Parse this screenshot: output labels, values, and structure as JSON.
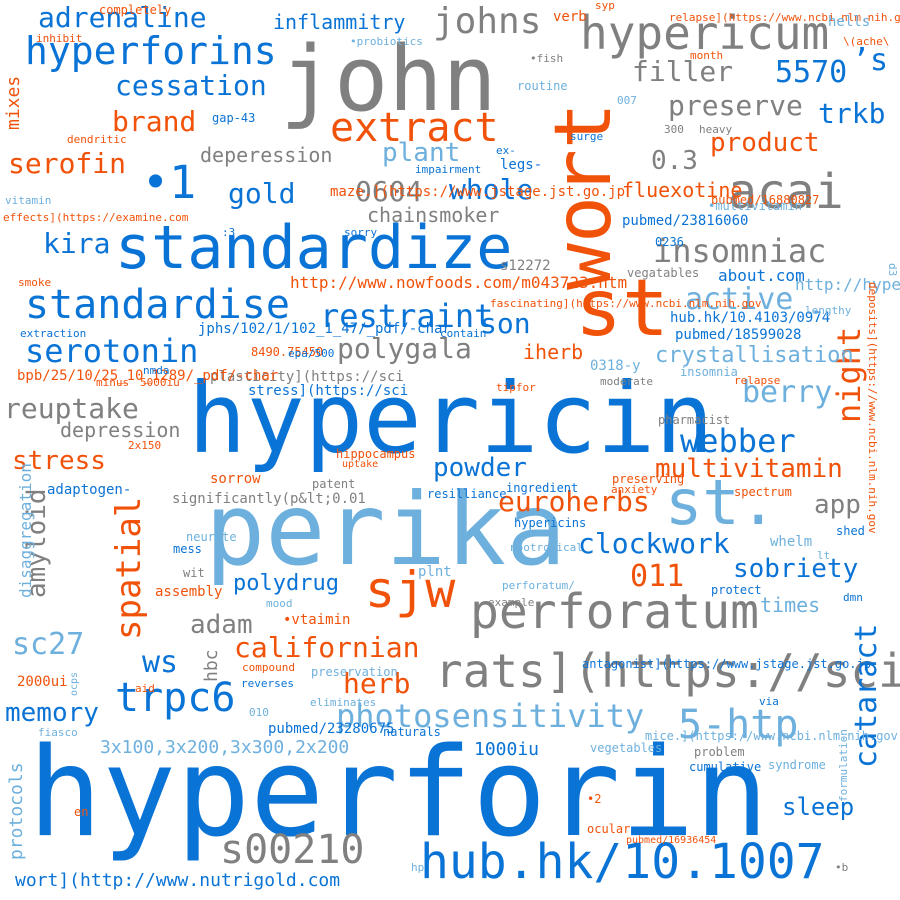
{
  "colors": {
    "blue": "#0a73d6",
    "gray": "#808080",
    "orange": "#f1520a",
    "lightblue": "#6eb0dd",
    "background": "#ffffff"
  },
  "words": [
    {
      "text": "hyperforin",
      "color": "blue"
    },
    {
      "text": "perika",
      "color": "lightblue"
    },
    {
      "text": "hypericin",
      "color": "blue"
    },
    {
      "text": "john",
      "color": "gray"
    },
    {
      "text": "wort",
      "color": "orange"
    },
    {
      "text": "standardize",
      "color": "blue"
    },
    {
      "text": "st",
      "color": "orange"
    },
    {
      "text": "perforatum",
      "color": "gray"
    },
    {
      "text": "hub.hk/10.1007",
      "color": "blue"
    },
    {
      "text": "st.",
      "color": "lightblue"
    },
    {
      "text": "sjw",
      "color": "orange"
    },
    {
      "text": "rats](https://sci",
      "color": "gray"
    },
    {
      "text": "hypericum",
      "color": "gray"
    },
    {
      "text": "hyperforins",
      "color": "blue"
    },
    {
      "text": "extract",
      "color": "orange"
    },
    {
      "text": "acai",
      "color": "gray"
    },
    {
      "text": "standardise",
      "color": "blue"
    },
    {
      "text": "trpc6",
      "color": "blue"
    },
    {
      "text": "s00210",
      "color": "gray"
    },
    {
      "text": "5-htp",
      "color": "lightblue"
    },
    {
      "text": "spatial",
      "color": "orange"
    },
    {
      "text": "johns",
      "color": "gray"
    },
    {
      "text": "insomniac",
      "color": "gray"
    },
    {
      "text": "webber",
      "color": "blue"
    },
    {
      "text": "photosensitivity",
      "color": "lightblue"
    },
    {
      "text": "restraint",
      "color": "blue"
    },
    {
      "text": "serotonin",
      "color": "blue"
    },
    {
      "text": "adrenaline",
      "color": "blue"
    },
    {
      "text": "cessation",
      "color": "blue"
    },
    {
      "text": "brand",
      "color": "orange"
    },
    {
      "text": "serofin",
      "color": "orange"
    },
    {
      "text": "polygala",
      "color": "gray"
    },
    {
      "text": "euroherbs",
      "color": "orange"
    },
    {
      "text": "clockwork",
      "color": "blue"
    },
    {
      "text": "californian",
      "color": "orange"
    },
    {
      "text": "herb",
      "color": "orange"
    },
    {
      "text": "memory",
      "color": "blue"
    },
    {
      "text": "sobriety",
      "color": "blue"
    },
    {
      "text": "berry",
      "color": "lightblue"
    },
    {
      "text": "night",
      "color": "orange"
    },
    {
      "text": "cataract",
      "color": "blue"
    },
    {
      "text": "multivitamin",
      "color": "orange"
    },
    {
      "text": "powder",
      "color": "blue"
    },
    {
      "text": "product",
      "color": "orange"
    },
    {
      "text": "active",
      "color": "lightblue"
    },
    {
      "text": "filler",
      "color": "gray"
    },
    {
      "text": "5570",
      "color": "blue"
    },
    {
      "text": "preserve",
      "color": "gray"
    },
    {
      "text": "trkb",
      "color": "blue"
    },
    {
      "text": "plant",
      "color": "lightblue"
    },
    {
      "text": "0604",
      "color": "gray"
    },
    {
      "text": "whole",
      "color": "blue"
    },
    {
      "text": "gold",
      "color": "blue"
    },
    {
      "text": "kira",
      "color": "blue"
    },
    {
      "text": "son",
      "color": "blue"
    },
    {
      "text": "reuptake",
      "color": "gray"
    },
    {
      "text": "stress",
      "color": "orange"
    },
    {
      "text": "amyloid",
      "color": "gray"
    },
    {
      "text": "011",
      "color": "orange"
    },
    {
      "text": "adam",
      "color": "gray"
    },
    {
      "text": "polydrug",
      "color": "blue"
    },
    {
      "text": "ws",
      "color": "blue"
    },
    {
      "text": "sc27",
      "color": "lightblue"
    },
    {
      "text": "sleep",
      "color": "blue"
    },
    {
      "text": "iherb",
      "color": "orange"
    },
    {
      "text": "app",
      "color": "gray"
    },
    {
      "text": "•1",
      "color": "blue"
    },
    {
      "text": "’s",
      "color": "blue"
    },
    {
      "text": "0.3",
      "color": "gray"
    },
    {
      "text": "fluexotine",
      "color": "orange"
    },
    {
      "text": "deperession",
      "color": "gray"
    },
    {
      "text": "chainsmoker",
      "color": "gray"
    },
    {
      "text": "crystallisation",
      "color": "lightblue"
    },
    {
      "text": "depression",
      "color": "gray"
    },
    {
      "text": "inflammitry",
      "color": "blue"
    },
    {
      "text": "mixes",
      "color": "orange"
    },
    {
      "text": "protocols",
      "color": "lightblue"
    },
    {
      "text": "disaggregation",
      "color": "lightblue"
    },
    {
      "text": "hbc",
      "color": "gray"
    },
    {
      "text": "times",
      "color": "lightblue"
    },
    {
      "text": "1000iu",
      "color": "blue"
    },
    {
      "text": "3x100,3x200,3x300,2x200",
      "color": "lightblue"
    },
    {
      "text": "wort](http://www.nutrigold.com",
      "color": "blue"
    },
    {
      "text": "http://www.nowfoods.com/m043723.htm",
      "color": "orange"
    },
    {
      "text": "http://hypericum.com/hypericum-perforatum/",
      "color": "lightblue"
    },
    {
      "text": "about.com",
      "color": "blue"
    },
    {
      "text": "whelm",
      "color": "lightblue"
    },
    {
      "text": "adaptogen-",
      "color": "blue"
    },
    {
      "text": "sorrow",
      "color": "orange"
    },
    {
      "text": "•vtaimin",
      "color": "orange"
    },
    {
      "text": "assembly",
      "color": "orange"
    },
    {
      "text": "plnt",
      "color": "lightblue"
    },
    {
      "text": "significantly(p&lt;0.01",
      "color": "gray"
    },
    {
      "text": "plasticity](https://sci",
      "color": "gray"
    },
    {
      "text": "stress](https://sci",
      "color": "blue"
    },
    {
      "text": "jphs/102/1/102_1_47/_pdf/-char",
      "color": "blue"
    },
    {
      "text": "hub.hk/10.4103/0974",
      "color": "blue"
    },
    {
      "text": "pubmed/18599028",
      "color": "blue"
    },
    {
      "text": "pubmed/23280675",
      "color": "blue"
    },
    {
      "text": "pubmed/16880827",
      "color": "orange"
    },
    {
      "text": "pubmed/16936454",
      "color": "orange"
    },
    {
      "text": "pubmed/23816060",
      "color": "blue"
    },
    {
      "text": "bpb/25/10/25_10_1289/_pdf/-char",
      "color": "orange"
    },
    {
      "text": "2000ui",
      "color": "orange"
    },
    {
      "text": "8490.75450",
      "color": "orange"
    },
    {
      "text": "s12272",
      "color": "gray"
    },
    {
      "text": "legs-",
      "color": "blue"
    },
    {
      "text": "0318-y",
      "color": "lightblue"
    },
    {
      "text": "0236",
      "color": "blue"
    },
    {
      "text": "•multivitamin",
      "color": "lightblue"
    },
    {
      "text": "vegatables",
      "color": "gray"
    },
    {
      "text": "lengthy",
      "color": "lightblue"
    },
    {
      "text": "insomnia",
      "color": "lightblue"
    },
    {
      "text": "relapse",
      "color": "orange"
    },
    {
      "text": "moderate",
      "color": "gray"
    },
    {
      "text": "pharmacist",
      "color": "gray"
    },
    {
      "text": "spectrum",
      "color": "orange"
    },
    {
      "text": "ingredient",
      "color": "blue"
    },
    {
      "text": "resilliance",
      "color": "blue"
    },
    {
      "text": "hypericins",
      "color": "blue"
    },
    {
      "text": "preserving",
      "color": "orange"
    },
    {
      "text": "anxiety",
      "color": "orange"
    },
    {
      "text": "patent",
      "color": "gray"
    },
    {
      "text": "uptake",
      "color": "orange"
    },
    {
      "text": "hippocampus",
      "color": "orange"
    },
    {
      "text": "2x150",
      "color": "orange"
    },
    {
      "text": "neurite",
      "color": "lightblue"
    },
    {
      "text": "mess",
      "color": "blue"
    },
    {
      "text": "wit",
      "color": "gray"
    },
    {
      "text": "mood",
      "color": "lightblue"
    },
    {
      "text": "nootropical",
      "color": "lightblue"
    },
    {
      "text": "perforatum/",
      "color": "lightblue"
    },
    {
      "text": "example",
      "color": "gray"
    },
    {
      "text": "protect",
      "color": "blue"
    },
    {
      "text": "shed",
      "color": "blue"
    },
    {
      "text": "lt",
      "color": "lightblue"
    },
    {
      "text": "dmn",
      "color": "blue"
    },
    {
      "text": "compound",
      "color": "orange"
    },
    {
      "text": "reverses",
      "color": "blue"
    },
    {
      "text": "preservation",
      "color": "lightblue"
    },
    {
      "text": "010",
      "color": "lightblue"
    },
    {
      "text": "eliminates",
      "color": "lightblue"
    },
    {
      "text": "via",
      "color": "blue"
    },
    {
      "text": "aid",
      "color": "orange"
    },
    {
      "text": "fiasco",
      "color": "lightblue"
    },
    {
      "text": "naturals",
      "color": "blue"
    },
    {
      "text": "mice.](https://www.ncbi.nlm.nih.gov",
      "color": "lightblue"
    },
    {
      "text": "vegetables",
      "color": "lightblue"
    },
    {
      "text": "problem",
      "color": "gray"
    },
    {
      "text": "syndrome",
      "color": "lightblue"
    },
    {
      "text": "formulation",
      "color": "lightblue"
    },
    {
      "text": "cumulative",
      "color": "blue"
    },
    {
      "text": "•2",
      "color": "orange"
    },
    {
      "text": "ocular",
      "color": "orange"
    },
    {
      "text": "en",
      "color": "orange"
    },
    {
      "text": "hp",
      "color": "lightblue"
    },
    {
      "text": "•b",
      "color": "gray"
    },
    {
      "text": "ocps",
      "color": "lightblue"
    },
    {
      "text": "completely",
      "color": "orange"
    },
    {
      "text": "inhibit",
      "color": "orange"
    },
    {
      "text": "•probiotics",
      "color": "lightblue"
    },
    {
      "text": "verb",
      "color": "orange"
    },
    {
      "text": "syp",
      "color": "orange"
    },
    {
      "text": "relapse](https://www.ncbi.nlm.nih.gov",
      "color": "orange"
    },
    {
      "text": "hells",
      "color": "lightblue"
    },
    {
      "text": "\\(ache\\",
      "color": "orange"
    },
    {
      "text": "month",
      "color": "orange"
    },
    {
      "text": "•fish",
      "color": "gray"
    },
    {
      "text": "routine",
      "color": "lightblue"
    },
    {
      "text": "007",
      "color": "lightblue"
    },
    {
      "text": "gap-43",
      "color": "blue"
    },
    {
      "text": "300",
      "color": "gray"
    },
    {
      "text": "heavy",
      "color": "gray"
    },
    {
      "text": "dendritic",
      "color": "orange"
    },
    {
      "text": "surge",
      "color": "blue"
    },
    {
      "text": "ex-",
      "color": "blue"
    },
    {
      "text": "impairment",
      "color": "blue"
    },
    {
      "text": "vitamin",
      "color": "lightblue"
    },
    {
      "text": "effects](https://examine.com",
      "color": "orange"
    },
    {
      "text": "maze.](https://www.jstage.jst.go.jp",
      "color": "orange"
    },
    {
      "text": ":3",
      "color": "blue"
    },
    {
      "text": "sorry",
      "color": "blue"
    },
    {
      "text": "smoke",
      "color": "orange"
    },
    {
      "text": "fascinating](https://www.ncbi.nlm.nih.gov",
      "color": "orange"
    },
    {
      "text": "extraction",
      "color": "blue"
    },
    {
      "text": "contain",
      "color": "blue"
    },
    {
      "text": "epa/500",
      "color": "blue"
    },
    {
      "text": "nmda",
      "color": "blue"
    },
    {
      "text": "minus",
      "color": "orange"
    },
    {
      "text": "5000iu",
      "color": "orange"
    },
    {
      "text": "tipfor",
      "color": "orange"
    },
    {
      "text": "d3",
      "color": "lightblue"
    },
    {
      "text": "deposits](https://www.ncbi.nlm.nih.gov",
      "color": "orange"
    },
    {
      "text": "antagonist](https://www.jstage.jst.go.jp",
      "color": "blue"
    },
    {
      "text": "%",
      "color": "lightblue"
    }
  ]
}
